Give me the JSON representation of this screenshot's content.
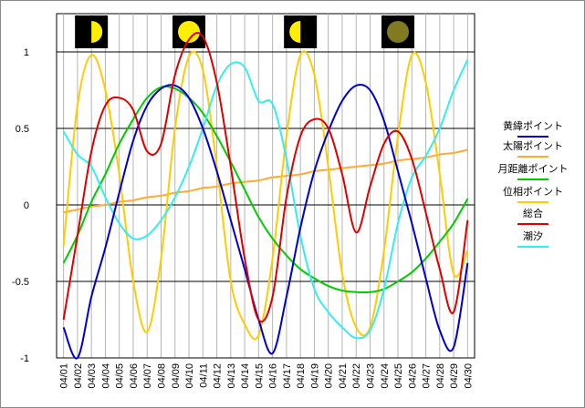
{
  "chart_data": {
    "type": "line",
    "x": [
      "04/01",
      "04/02",
      "04/03",
      "04/04",
      "04/05",
      "04/06",
      "04/07",
      "04/08",
      "04/09",
      "04/10",
      "04/11",
      "04/12",
      "04/13",
      "04/14",
      "04/15",
      "04/16",
      "04/17",
      "04/18",
      "04/19",
      "04/20",
      "04/21",
      "04/22",
      "04/23",
      "04/24",
      "04/25",
      "04/26",
      "04/27",
      "04/28",
      "04/29",
      "04/30"
    ],
    "ylim": [
      -1,
      1.25
    ],
    "yticks": [
      1,
      0.5,
      0,
      -0.5,
      -1
    ],
    "grid": true,
    "legend": "right",
    "moon_phases": [
      {
        "day": "04/03",
        "phase": "first-quarter-icon"
      },
      {
        "day": "04/10",
        "phase": "full-moon-icon"
      },
      {
        "day": "04/18",
        "phase": "last-quarter-icon"
      },
      {
        "day": "04/25",
        "phase": "new-moon-icon"
      }
    ],
    "series": [
      {
        "name": "黄緯ポイント",
        "color": "#0000cc",
        "values": [
          -0.8,
          -1.0,
          -0.6,
          -0.28,
          0.08,
          0.42,
          0.65,
          0.76,
          0.78,
          0.7,
          0.5,
          0.22,
          -0.1,
          -0.42,
          -0.75,
          -0.97,
          -0.6,
          -0.15,
          0.22,
          0.48,
          0.68,
          0.78,
          0.75,
          0.55,
          0.22,
          -0.12,
          -0.48,
          -0.82,
          -0.93,
          -0.38
        ]
      },
      {
        "name": "太陽ポイント",
        "color": "#ffaa33",
        "values": [
          -0.05,
          -0.03,
          -0.01,
          0.0,
          0.02,
          0.03,
          0.05,
          0.06,
          0.08,
          0.09,
          0.11,
          0.12,
          0.14,
          0.15,
          0.16,
          0.18,
          0.19,
          0.2,
          0.22,
          0.23,
          0.24,
          0.25,
          0.26,
          0.27,
          0.29,
          0.3,
          0.31,
          0.33,
          0.34,
          0.36
        ]
      },
      {
        "name": "月距離ポイント",
        "color": "#00cc00",
        "values": [
          -0.38,
          -0.2,
          0.02,
          0.2,
          0.4,
          0.56,
          0.7,
          0.77,
          0.76,
          0.7,
          0.6,
          0.45,
          0.28,
          0.1,
          -0.08,
          -0.22,
          -0.33,
          -0.42,
          -0.48,
          -0.53,
          -0.56,
          -0.57,
          -0.57,
          -0.55,
          -0.5,
          -0.44,
          -0.35,
          -0.24,
          -0.12,
          0.04
        ]
      },
      {
        "name": "位相ポイント",
        "color": "#ffcc00",
        "values": [
          -0.27,
          0.65,
          0.98,
          0.75,
          0.2,
          -0.5,
          -0.83,
          -0.35,
          0.5,
          0.97,
          0.88,
          0.25,
          -0.5,
          -0.78,
          -0.85,
          -0.35,
          0.45,
          0.98,
          0.85,
          0.25,
          -0.45,
          -0.8,
          -0.8,
          -0.3,
          0.45,
          0.98,
          0.8,
          0.2,
          -0.45,
          -0.3
        ]
      },
      {
        "name": "総合",
        "color": "#dd0000",
        "values": [
          -0.75,
          -0.2,
          0.35,
          0.65,
          0.7,
          0.62,
          0.35,
          0.4,
          0.85,
          1.08,
          1.1,
          0.8,
          0.25,
          -0.35,
          -0.75,
          -0.6,
          0.05,
          0.45,
          0.56,
          0.5,
          0.2,
          -0.18,
          0.12,
          0.4,
          0.48,
          0.3,
          -0.05,
          -0.42,
          -0.7,
          -0.1
        ]
      },
      {
        "name": "潮汐",
        "color": "#33eeee",
        "values": [
          0.48,
          0.33,
          0.25,
          0.05,
          -0.12,
          -0.22,
          -0.2,
          -0.1,
          0.05,
          0.25,
          0.5,
          0.78,
          0.92,
          0.9,
          0.68,
          0.66,
          0.3,
          -0.2,
          -0.55,
          -0.7,
          -0.8,
          -0.87,
          -0.82,
          -0.55,
          -0.12,
          0.18,
          0.32,
          0.5,
          0.75,
          0.95
        ]
      }
    ]
  }
}
